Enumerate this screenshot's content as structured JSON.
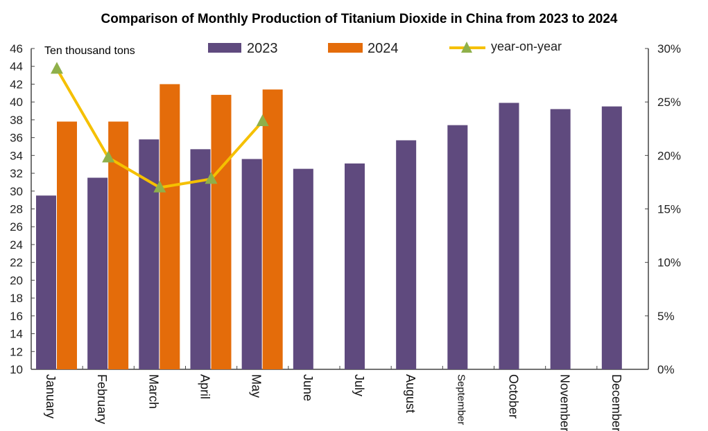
{
  "chart_data": {
    "type": "bar",
    "title": "Comparison of Monthly Production of Titanium Dioxide in China from 2023 to 2024",
    "unit_label": "Ten thousand tons",
    "categories": [
      "January",
      "February",
      "March",
      "April",
      "May",
      "June",
      "July",
      "August",
      "September",
      "October",
      "November",
      "December"
    ],
    "series": [
      {
        "name": "2023",
        "type": "bar",
        "color": "#5f4a7e",
        "axis": "left",
        "values": [
          29.5,
          31.5,
          35.8,
          34.7,
          33.6,
          32.5,
          33.1,
          35.7,
          37.4,
          39.9,
          39.2,
          39.5
        ]
      },
      {
        "name": "2024",
        "type": "bar",
        "color": "#e46c0a",
        "axis": "left",
        "values": [
          37.8,
          37.8,
          42.0,
          40.8,
          41.4,
          null,
          null,
          null,
          null,
          null,
          null,
          null
        ]
      },
      {
        "name": "year-on-year",
        "type": "line",
        "color": "#f5c000",
        "marker_color": "#8fb04a",
        "axis": "right",
        "unit": "%",
        "values": [
          28.1,
          19.8,
          17.0,
          17.8,
          23.2,
          null,
          null,
          null,
          null,
          null,
          null,
          null
        ]
      }
    ],
    "y_left": {
      "min": 10,
      "max": 46,
      "step": 2
    },
    "y_right": {
      "min": 0,
      "max": 30,
      "step": 5,
      "format": "%"
    },
    "legend": "top",
    "grid": false
  }
}
